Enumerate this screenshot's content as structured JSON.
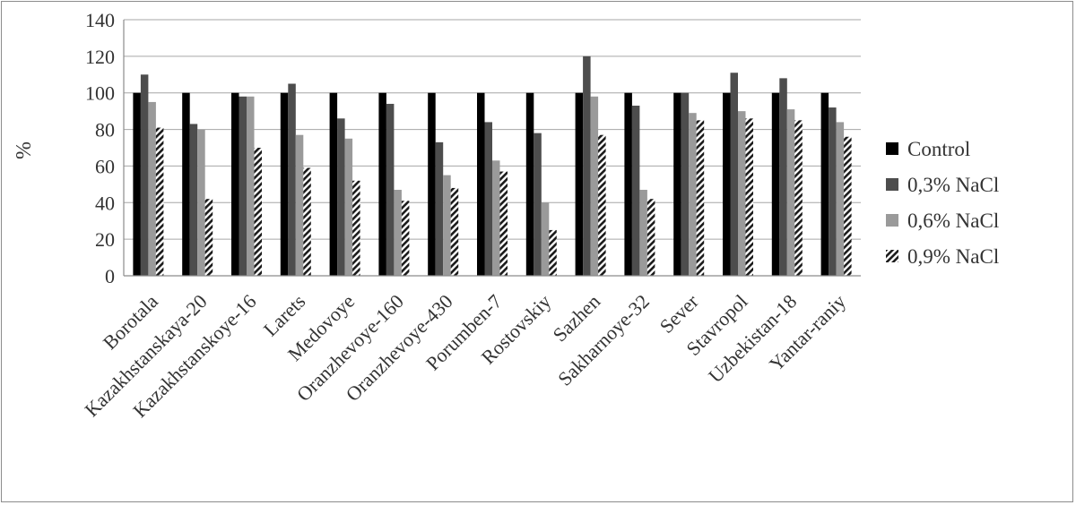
{
  "chart_data": {
    "type": "bar",
    "title": "",
    "xlabel": "",
    "ylabel": "%",
    "ylim": [
      0,
      140
    ],
    "yticks": [
      0,
      20,
      40,
      60,
      80,
      100,
      120,
      140
    ],
    "grid": true,
    "legend_position": "right",
    "categories": [
      "Borotala",
      "Kazakhstanskaya-20",
      "Kazakhstanskoye-16",
      "Larets",
      "Medovoye",
      "Oranzhevoye-160",
      "Oranzhevoye-430",
      "Porumben-7",
      "Rostovskiy",
      "Sazhen",
      "Sakharnoye-32",
      "Sever",
      "Stavropol",
      "Uzbekistan-18",
      "Yantar-raniy"
    ],
    "series": [
      {
        "name": "Control",
        "color": "#000000",
        "pattern": "solid",
        "values": [
          100,
          100,
          100,
          100,
          100,
          100,
          100,
          100,
          100,
          100,
          100,
          100,
          100,
          100,
          100
        ]
      },
      {
        "name": "0,3% NaCl",
        "color": "#4d4d4d",
        "pattern": "solid",
        "values": [
          110,
          83,
          98,
          105,
          86,
          94,
          73,
          84,
          78,
          120,
          93,
          100,
          111,
          108,
          92
        ]
      },
      {
        "name": "0,6% NaCl",
        "color": "#9a9a9a",
        "pattern": "solid",
        "values": [
          95,
          80,
          98,
          77,
          75,
          47,
          55,
          63,
          40,
          98,
          47,
          89,
          90,
          91,
          84
        ]
      },
      {
        "name": "0,9% NaCl",
        "color": "#000000",
        "pattern": "hatch",
        "values": [
          81,
          42,
          70,
          59,
          52,
          41,
          48,
          57,
          25,
          77,
          42,
          85,
          86,
          85,
          76
        ]
      }
    ]
  }
}
